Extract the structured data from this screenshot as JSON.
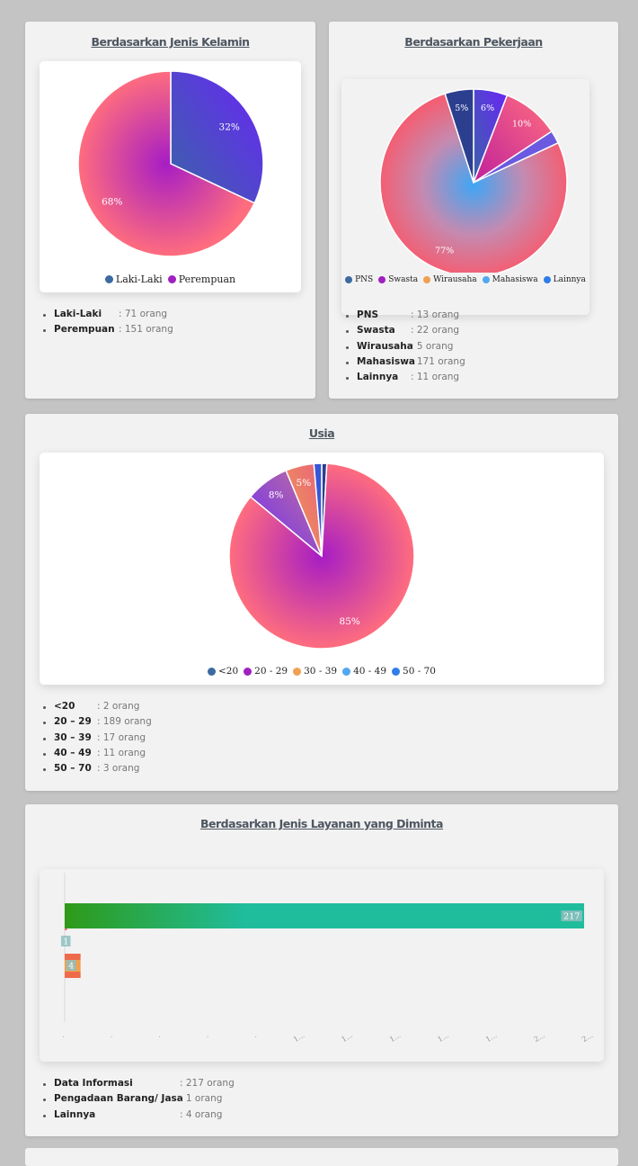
{
  "colors": {
    "blue_dark": "#3c6aa0",
    "purple": "#a020c0",
    "orange": "#f0a050",
    "sky": "#52a8f0",
    "blue": "#2f7de8",
    "pink": "#ff6b7f",
    "violet": "#6a2cf5",
    "green": "#2e9e1e",
    "teal": "#20bd9d"
  },
  "cards": {
    "gender": {
      "title": "Berdasarkan Jenis Kelamin",
      "stats": [
        {
          "k": "Laki-Laki",
          "v": ": 71 orang"
        },
        {
          "k": "Perempuan",
          "v": ": 151 orang"
        }
      ]
    },
    "job": {
      "title": "Berdasarkan Pekerjaan",
      "stats": [
        {
          "k": "PNS",
          "v": ": 13 orang"
        },
        {
          "k": "Swasta",
          "v": ": 22 orang"
        },
        {
          "k": "Wirausaha",
          "v": ": 5 orang"
        },
        {
          "k": "Mahasiswa",
          "v": ": 171 orang"
        },
        {
          "k": "Lainnya",
          "v": ": 11 orang"
        }
      ]
    },
    "age": {
      "title": "Usia",
      "stats": [
        {
          "k": "<20",
          "v": ": 2 orang"
        },
        {
          "k": "20 – 29",
          "v": ": 189 orang"
        },
        {
          "k": "30 – 39",
          "v": ": 17 orang"
        },
        {
          "k": "40 – 49",
          "v": ": 11 orang"
        },
        {
          "k": "50 – 70",
          "v": ": 3 orang"
        }
      ]
    },
    "service": {
      "title": "Berdasarkan Jenis Layanan yang Diminta",
      "stats": [
        {
          "k": "Data Informasi",
          "v": ": 217 orang"
        },
        {
          "k": "Pengadaan Barang/ Jasa",
          "v": ": 1 orang"
        },
        {
          "k": "Lainnya",
          "v": ": 4 orang"
        }
      ]
    }
  },
  "chart_data": [
    {
      "type": "pie",
      "title": "Berdasarkan Jenis Kelamin",
      "categories": [
        "Laki-Laki",
        "Perempuan"
      ],
      "values": [
        71,
        151
      ],
      "labels": [
        "32%",
        "68%"
      ],
      "colors": [
        "#3c6aa0",
        "#a020c0"
      ],
      "legend": "bottom"
    },
    {
      "type": "pie",
      "title": "Berdasarkan Pekerjaan",
      "categories": [
        "PNS",
        "Swasta",
        "Wirausaha",
        "Mahasiswa",
        "Lainnya"
      ],
      "values": [
        13,
        22,
        5,
        171,
        11
      ],
      "labels": [
        "6%",
        "10%",
        "",
        "77%",
        "5%"
      ],
      "colors": [
        "#3c6aa0",
        "#a020c0",
        "#f0a050",
        "#52a8f0",
        "#2f7de8"
      ],
      "legend": "bottom"
    },
    {
      "type": "pie",
      "title": "Usia",
      "categories": [
        "<20",
        "20 - 29",
        "30 - 39",
        "40 - 49",
        "50 - 70"
      ],
      "values": [
        2,
        189,
        17,
        11,
        3
      ],
      "labels": [
        "",
        "85%",
        "8%",
        "5%",
        ""
      ],
      "colors": [
        "#3c6aa0",
        "#a020c0",
        "#f0a050",
        "#52a8f0",
        "#2f7de8"
      ],
      "legend": "bottom"
    },
    {
      "type": "bar",
      "orientation": "horizontal",
      "title": "Berdasarkan Jenis Layanan yang Diminta",
      "categories": [
        "Data Informasi",
        "Pengadaan Barang/ Jasa",
        "Lainnya"
      ],
      "values": [
        217,
        1,
        4
      ],
      "data_labels": [
        "217",
        "1",
        "4"
      ],
      "x_tick_labels": [
        ".",
        ".",
        ".",
        ".",
        ".",
        "1...",
        "1...",
        "1...",
        "1...",
        "1...",
        "2...",
        "2..."
      ],
      "grid": false
    }
  ]
}
